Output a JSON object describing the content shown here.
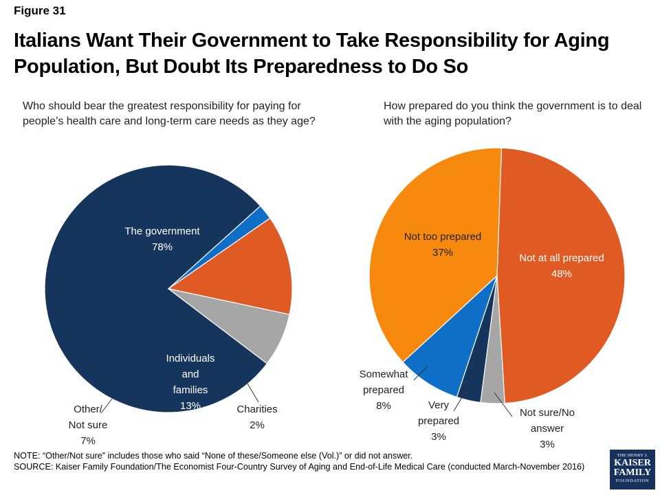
{
  "figure_label": "Figure 31",
  "title": "Italians Want Their Government to Take Responsibility for Aging Population, But Doubt Its Preparedness to Do So",
  "colors": {
    "navy": "#16355d",
    "orange_red": "#e05a24",
    "blue": "#0f6fc6",
    "gray": "#a6a6a6",
    "orange": "#f7890f"
  },
  "chart_data": [
    {
      "type": "pie",
      "title": "Who should bear the greatest responsibility for paying for people’s health care and long-term care needs as they age?",
      "slices": [
        {
          "label": [
            "The government"
          ],
          "value": 78,
          "value_label": "78%",
          "color": "#16355d"
        },
        {
          "label": [
            "Charities"
          ],
          "value": 2,
          "value_label": "2%",
          "color": "#0f6fc6"
        },
        {
          "label": [
            "Individuals",
            "and",
            "families"
          ],
          "value": 13,
          "value_label": "13%",
          "color": "#e05a24"
        },
        {
          "label": [
            "Other/",
            "Not sure"
          ],
          "value": 7,
          "value_label": "7%",
          "color": "#a6a6a6"
        }
      ]
    },
    {
      "type": "pie",
      "title": "How prepared do you think the government is to deal with the aging population?",
      "slices": [
        {
          "label": [
            "Not at all prepared"
          ],
          "value": 48,
          "value_label": "48%",
          "color": "#e05a24"
        },
        {
          "label": [
            "Not sure/No",
            "answer"
          ],
          "value": 3,
          "value_label": "3%",
          "color": "#a6a6a6"
        },
        {
          "label": [
            "Very",
            "prepared"
          ],
          "value": 3,
          "value_label": "3%",
          "color": "#16355d"
        },
        {
          "label": [
            "Somewhat",
            "prepared"
          ],
          "value": 8,
          "value_label": "8%",
          "color": "#0f6fc6"
        },
        {
          "label": [
            "Not too prepared"
          ],
          "value": 37,
          "value_label": "37%",
          "color": "#f7890f"
        }
      ]
    }
  ],
  "notes": {
    "note": "NOTE: “Other/Not sure” includes those who said “None of these/Someone else (Vol.)” or did not answer.",
    "source": "SOURCE: Kaiser Family Foundation/The Economist Four-Country Survey of Aging and End-of-Life Medical Care (conducted March-November 2016)"
  },
  "logo": {
    "line1": "THE HENRY J.",
    "line2": "KAISER",
    "line3": "FAMILY",
    "line4": "FOUNDATION"
  }
}
